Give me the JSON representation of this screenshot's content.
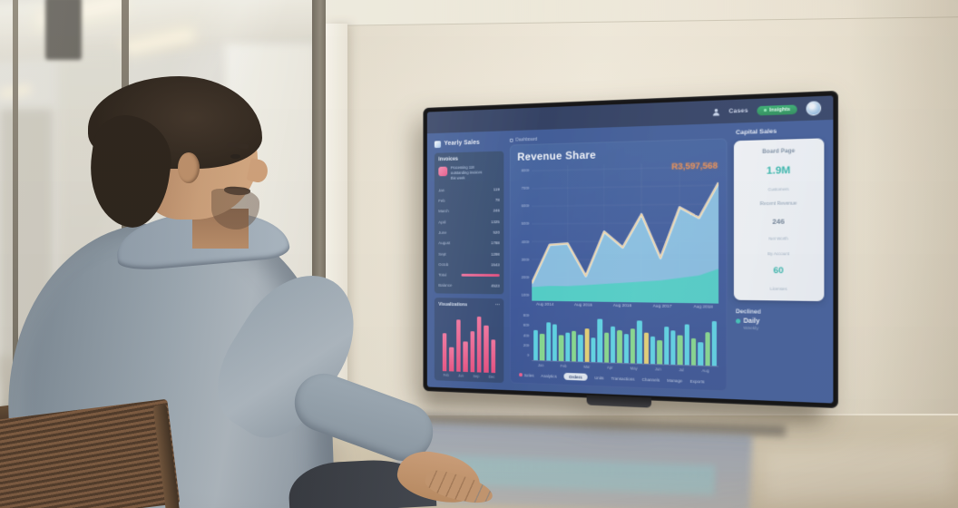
{
  "tv_dashboard": {
    "nav": {
      "link_label": "Cases",
      "badge_label": "Insights"
    },
    "logo_text": "Yearly Sales",
    "breadcrumb": "Dashboard",
    "sidebar": {
      "header": "Invoices",
      "note_lines": [
        "Processing 118",
        "outstanding invoices",
        "this week"
      ],
      "rows": [
        {
          "label": "Jan",
          "value": "119"
        },
        {
          "label": "Feb",
          "value": "78"
        },
        {
          "label": "March",
          "value": "246"
        },
        {
          "label": "April",
          "value": "1325"
        },
        {
          "label": "June",
          "value": "520"
        },
        {
          "label": "August",
          "value": "1788"
        },
        {
          "label": "Sept",
          "value": "1298"
        },
        {
          "label": "Octob",
          "value": "1543"
        },
        {
          "label": "Total",
          "value": "",
          "bar": true
        },
        {
          "label": "Balance",
          "value": "4523"
        }
      ],
      "mini_header": "Visualizations",
      "more_icon": "⋯"
    },
    "main": {
      "title": "Revenue Share",
      "annotation": "R3,597,568",
      "legend": [
        {
          "label": "Sales",
          "dot": true
        },
        {
          "label": "Analytics"
        },
        {
          "label": "Orders",
          "selected": true
        },
        {
          "label": "Units"
        },
        {
          "label": "Transactions"
        },
        {
          "label": "Channels"
        },
        {
          "label": "Manage"
        },
        {
          "label": "Exports"
        }
      ]
    },
    "right_panel": {
      "header": "Capital Sales",
      "card": {
        "title": "Board Page",
        "metric1": "1.9M",
        "metric1_label": "Customers",
        "metric1_sub": "Recent Revenue",
        "metric2": "246",
        "metric2_label": "Net Worth",
        "metric2_sub": "By Account",
        "metric3": "60",
        "metric3_label": "Licenses"
      },
      "declined": {
        "header": "Declined",
        "item": "Daily",
        "sub": "Weekly"
      }
    }
  },
  "chart_data": [
    {
      "type": "area",
      "title": "Revenue Share",
      "annotation": "R3,597,568",
      "x_labels": [
        "Aug 2014",
        "Aug 2015",
        "Aug 2016",
        "Aug 2017",
        "Aug 2018"
      ],
      "y_ticks": [
        "8000",
        "7000",
        "6000",
        "5000",
        "4000",
        "3000",
        "2000",
        "1000"
      ],
      "ylim": [
        0,
        100
      ],
      "grid": true,
      "series": [
        {
          "name": "Revenue",
          "fill": "#8cc7e9",
          "line": "#eed3a2",
          "values": [
            12,
            42,
            43,
            18,
            52,
            40,
            65,
            32,
            70,
            62,
            88
          ]
        },
        {
          "name": "Daily",
          "fill": "#49cfc6",
          "values": [
            9,
            10,
            10,
            11,
            12,
            13,
            14,
            15,
            17,
            19,
            24
          ]
        }
      ]
    },
    {
      "type": "bar",
      "x_labels": [
        "Jan",
        "Feb",
        "Mar",
        "Apr",
        "May",
        "Jun",
        "Jul",
        "Aug"
      ],
      "y_ticks": [
        "800",
        "600",
        "400",
        "200",
        "0"
      ],
      "palette": {
        "cyan": "#58d3e6",
        "green": "#83d98c",
        "yellow": "#e5d072"
      },
      "bars": [
        {
          "v": 62,
          "c": "cyan"
        },
        {
          "v": 55,
          "c": "green"
        },
        {
          "v": 78,
          "c": "cyan"
        },
        {
          "v": 75,
          "c": "cyan"
        },
        {
          "v": 52,
          "c": "green"
        },
        {
          "v": 58,
          "c": "cyan"
        },
        {
          "v": 62,
          "c": "green"
        },
        {
          "v": 55,
          "c": "cyan"
        },
        {
          "v": 68,
          "c": "yellow"
        },
        {
          "v": 50,
          "c": "cyan"
        },
        {
          "v": 88,
          "c": "cyan"
        },
        {
          "v": 60,
          "c": "green"
        },
        {
          "v": 72,
          "c": "cyan"
        },
        {
          "v": 66,
          "c": "green"
        },
        {
          "v": 58,
          "c": "cyan"
        },
        {
          "v": 70,
          "c": "green"
        },
        {
          "v": 85,
          "c": "cyan"
        },
        {
          "v": 62,
          "c": "yellow"
        },
        {
          "v": 55,
          "c": "cyan"
        },
        {
          "v": 48,
          "c": "green"
        },
        {
          "v": 75,
          "c": "cyan"
        },
        {
          "v": 68,
          "c": "cyan"
        },
        {
          "v": 58,
          "c": "green"
        },
        {
          "v": 80,
          "c": "cyan"
        },
        {
          "v": 52,
          "c": "green"
        },
        {
          "v": 45,
          "c": "cyan"
        },
        {
          "v": 65,
          "c": "green"
        },
        {
          "v": 88,
          "c": "cyan"
        }
      ]
    },
    {
      "type": "bar",
      "title": "Visualizations",
      "color": "#ee5b8e",
      "values": [
        62,
        40,
        85,
        50,
        66,
        90,
        76,
        54
      ],
      "x_labels": [
        "Feb",
        "Jun",
        "Sep",
        "Dec"
      ]
    }
  ],
  "colors": {
    "screen_bg": "#3a5795",
    "navbar": "#2b3a5f",
    "accent_teal": "#38c4b7",
    "accent_pink": "#ee5b8e",
    "annotation_orange": "#e78a4e",
    "badge_green": "#2f9d63"
  }
}
